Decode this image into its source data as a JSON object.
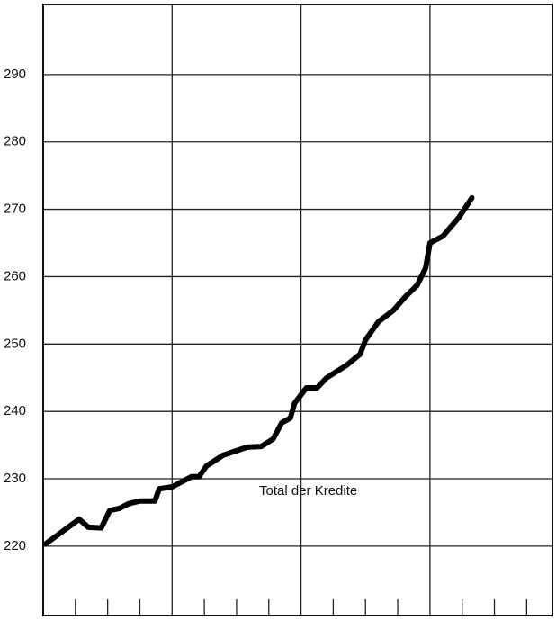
{
  "chart_data": {
    "type": "line",
    "annotation": "Total der Kredite",
    "x": [
      0.2,
      3.35,
      4.2,
      5.4,
      6.2,
      7.1,
      7.96,
      9.0,
      10.4,
      10.8,
      12.0,
      13.8,
      14.5,
      15.2,
      16.75,
      19.0,
      20.3,
      21.4,
      22.2,
      23.0,
      23.4,
      24.5,
      25.5,
      26.4,
      28.2,
      29.5,
      30.0,
      31.2,
      32.6,
      33.7,
      34.8,
      35.6,
      36.0,
      37.2,
      38.7,
      39.9
    ],
    "series": [
      {
        "name": "Total der Kredite",
        "color": "#000000",
        "values": [
          220.3,
          224.0,
          222.8,
          222.7,
          225.3,
          225.6,
          226.3,
          226.7,
          226.7,
          228.5,
          228.8,
          230.3,
          230.3,
          231.9,
          233.5,
          234.7,
          234.8,
          235.9,
          238.3,
          239.0,
          241.2,
          243.5,
          243.5,
          245.0,
          246.8,
          248.5,
          250.6,
          253.3,
          255.0,
          257.0,
          258.7,
          261.3,
          265.0,
          266.0,
          268.8,
          271.7
        ]
      }
    ],
    "xlim": [
      0,
      47.4
    ],
    "xticks": [
      3,
      6,
      9,
      15,
      18,
      21,
      27,
      30,
      33,
      39,
      42,
      45
    ],
    "xgrid": [
      12,
      24,
      36
    ],
    "ylim": [
      209.7,
      300.4
    ],
    "yticks": [
      220,
      230,
      240,
      250,
      260,
      270,
      280,
      290
    ],
    "grid": true
  }
}
